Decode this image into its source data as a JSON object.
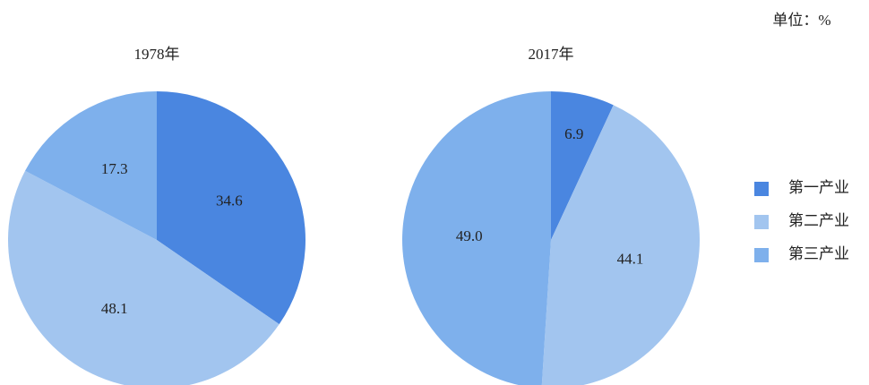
{
  "unit_note": "单位：%",
  "chart_data": [
    {
      "type": "pie",
      "title": "1978年",
      "categories": [
        "第一产业",
        "第二产业",
        "第三产业"
      ],
      "values": [
        34.6,
        48.1,
        17.3
      ],
      "value_labels": [
        "34.6",
        "48.1",
        "17.3"
      ],
      "colors": [
        "#4a86e0",
        "#a2c5ef",
        "#7eb0ec"
      ]
    },
    {
      "type": "pie",
      "title": "2017年",
      "categories": [
        "第一产业",
        "第二产业",
        "第三产业"
      ],
      "values": [
        6.9,
        44.1,
        49.0
      ],
      "value_labels": [
        "6.9",
        "44.1",
        "49.0"
      ],
      "colors": [
        "#4a86e0",
        "#a2c5ef",
        "#7eb0ec"
      ]
    }
  ]
}
